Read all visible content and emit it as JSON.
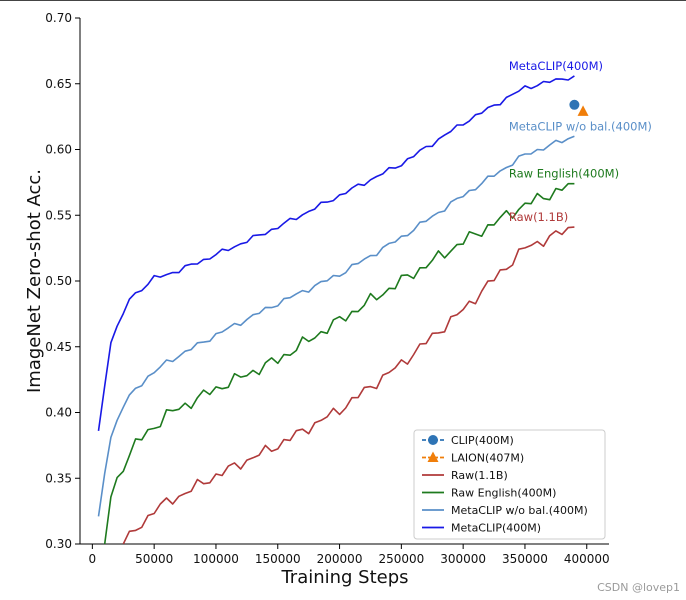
{
  "chart_data": {
    "type": "line",
    "xlabel": "Training Steps",
    "ylabel": "ImageNet Zero-shot Acc.",
    "xlim": [
      -10000,
      418000
    ],
    "ylim": [
      0.3,
      0.7
    ],
    "x_ticks": [
      0,
      50000,
      100000,
      150000,
      200000,
      250000,
      300000,
      350000,
      400000
    ],
    "y_ticks": [
      0.3,
      0.35,
      0.4,
      0.45,
      0.5,
      0.55,
      0.6,
      0.65,
      0.7
    ],
    "grid": false,
    "legend_position": "lower-right",
    "series": [
      {
        "name": "MetaCLIP(400M)",
        "label": "MetaCLIP(400M)",
        "color": "#1919e6",
        "x_start": 5000,
        "x_step": 5000,
        "noise": 0.0022,
        "anchors_x": [
          5000,
          10000,
          15000,
          25000,
          30000,
          40000,
          50000,
          70000,
          100000,
          150000,
          200000,
          250000,
          300000,
          350000,
          390000
        ],
        "anchors_y": [
          0.386,
          0.42,
          0.455,
          0.474,
          0.487,
          0.494,
          0.502,
          0.508,
          0.52,
          0.541,
          0.565,
          0.589,
          0.62,
          0.647,
          0.656
        ]
      },
      {
        "name": "MetaCLIP w/o bal.(400M)",
        "label": "MetaCLIP w/o bal.(400M)",
        "color": "#5a8fc8",
        "x_start": 5000,
        "x_step": 5000,
        "noise": 0.0025,
        "anchors_x": [
          5000,
          10000,
          15000,
          25000,
          35000,
          45000,
          60000,
          100000,
          150000,
          200000,
          250000,
          300000,
          350000,
          390000
        ],
        "anchors_y": [
          0.321,
          0.355,
          0.382,
          0.405,
          0.418,
          0.427,
          0.438,
          0.459,
          0.483,
          0.505,
          0.533,
          0.565,
          0.596,
          0.61
        ]
      },
      {
        "name": "Raw English(400M)",
        "label": "Raw English(400M)",
        "color": "#1e7a1e",
        "x_start": 10000,
        "x_step": 5000,
        "noise": 0.0055,
        "anchors_x": [
          10000,
          15000,
          25000,
          35000,
          45000,
          60000,
          100000,
          150000,
          200000,
          250000,
          300000,
          350000,
          390000
        ],
        "anchors_y": [
          0.3,
          0.336,
          0.36,
          0.376,
          0.385,
          0.398,
          0.418,
          0.44,
          0.47,
          0.5,
          0.53,
          0.558,
          0.574
        ]
      },
      {
        "name": "Raw(1.1B)",
        "label": "Raw(1.1B)",
        "color": "#b03a3a",
        "x_start": 25000,
        "x_step": 5000,
        "noise": 0.005,
        "anchors_x": [
          25000,
          35000,
          50000,
          100000,
          150000,
          200000,
          250000,
          300000,
          350000,
          390000
        ],
        "anchors_y": [
          0.3,
          0.31,
          0.326,
          0.352,
          0.375,
          0.402,
          0.437,
          0.478,
          0.525,
          0.541
        ]
      }
    ],
    "points": [
      {
        "name": "CLIP(400M)",
        "x": 390000,
        "y": 0.634,
        "color": "#2e74b5",
        "marker": "circle"
      },
      {
        "name": "LAION(407M)",
        "x": 397000,
        "y": 0.629,
        "color": "#f07e0a",
        "marker": "triangle"
      }
    ],
    "legend": [
      {
        "label": "CLIP(400M)",
        "color": "#2e74b5",
        "style": "dashed",
        "marker": "circle"
      },
      {
        "label": "LAION(407M)",
        "color": "#f07e0a",
        "style": "dashed",
        "marker": "triangle"
      },
      {
        "label": "Raw(1.1B)",
        "color": "#b03a3a",
        "style": "solid",
        "marker": "none"
      },
      {
        "label": "Raw English(400M)",
        "color": "#1e7a1e",
        "style": "solid",
        "marker": "none"
      },
      {
        "label": "MetaCLIP w/o bal.(400M)",
        "color": "#5a8fc8",
        "style": "solid",
        "marker": "none"
      },
      {
        "label": "MetaCLIP(400M)",
        "color": "#1919e6",
        "style": "solid",
        "marker": "none"
      }
    ]
  },
  "watermark": "CSDN @lovep1"
}
